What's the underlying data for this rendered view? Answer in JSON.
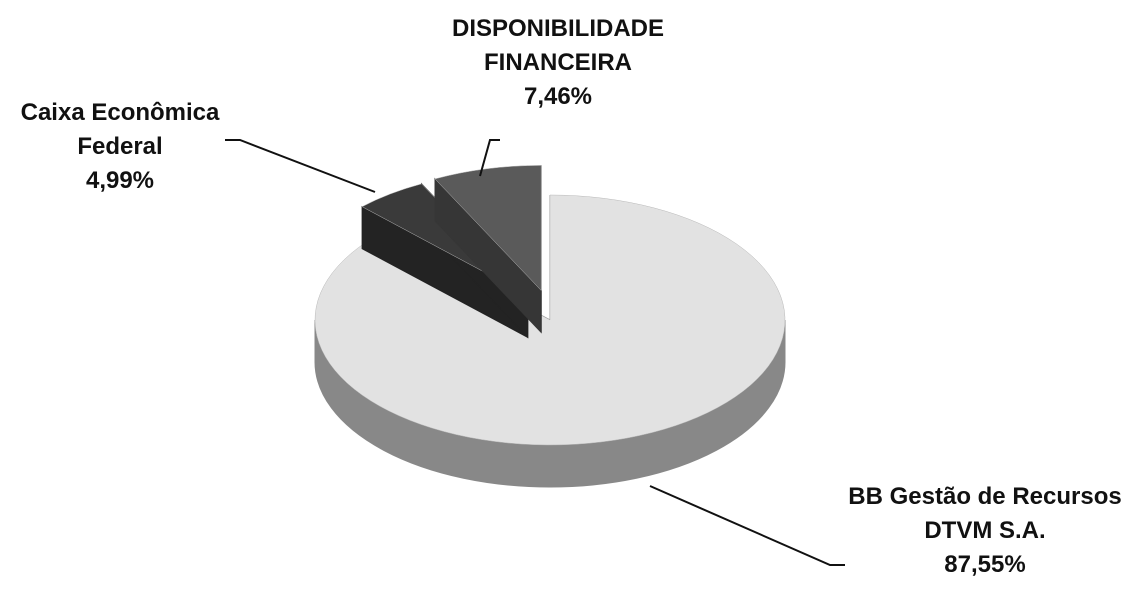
{
  "chart_data": {
    "type": "pie",
    "categories": [
      "BB Gestão de Recursos DTVM S.A.",
      "Caixa Econômica Federal",
      "DISPONIBILIDADE FINANCEIRA"
    ],
    "values": [
      87.55,
      4.99,
      7.46
    ],
    "value_labels": [
      "87,55%",
      "4,99%",
      "7,46%"
    ],
    "colors": [
      "#e2e2e2",
      "#3a3a3a",
      "#5a5a5a"
    ]
  }
}
